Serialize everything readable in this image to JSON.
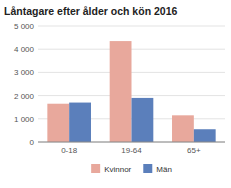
{
  "chart_data": {
    "type": "bar",
    "title": "Låntagare efter ålder och kön 2016",
    "categories": [
      "0-18",
      "19-64",
      "65+"
    ],
    "series": [
      {
        "name": "Kvinnor",
        "color": "#e8a89c",
        "values": [
          1650,
          4350,
          1150
        ]
      },
      {
        "name": "Män",
        "color": "#5b7fbb",
        "values": [
          1700,
          1900,
          550
        ]
      }
    ],
    "ylim": [
      0,
      5000
    ],
    "yticks": [
      0,
      {
        "value": 1000,
        "label": "1 000"
      },
      {
        "value": 2000,
        "label": "2 000"
      },
      {
        "value": 3000,
        "label": "3 000"
      },
      {
        "value": 4000,
        "label": "4 000"
      },
      {
        "value": 5000,
        "label": "5 000"
      }
    ],
    "grid": true,
    "legend": "bottom"
  }
}
